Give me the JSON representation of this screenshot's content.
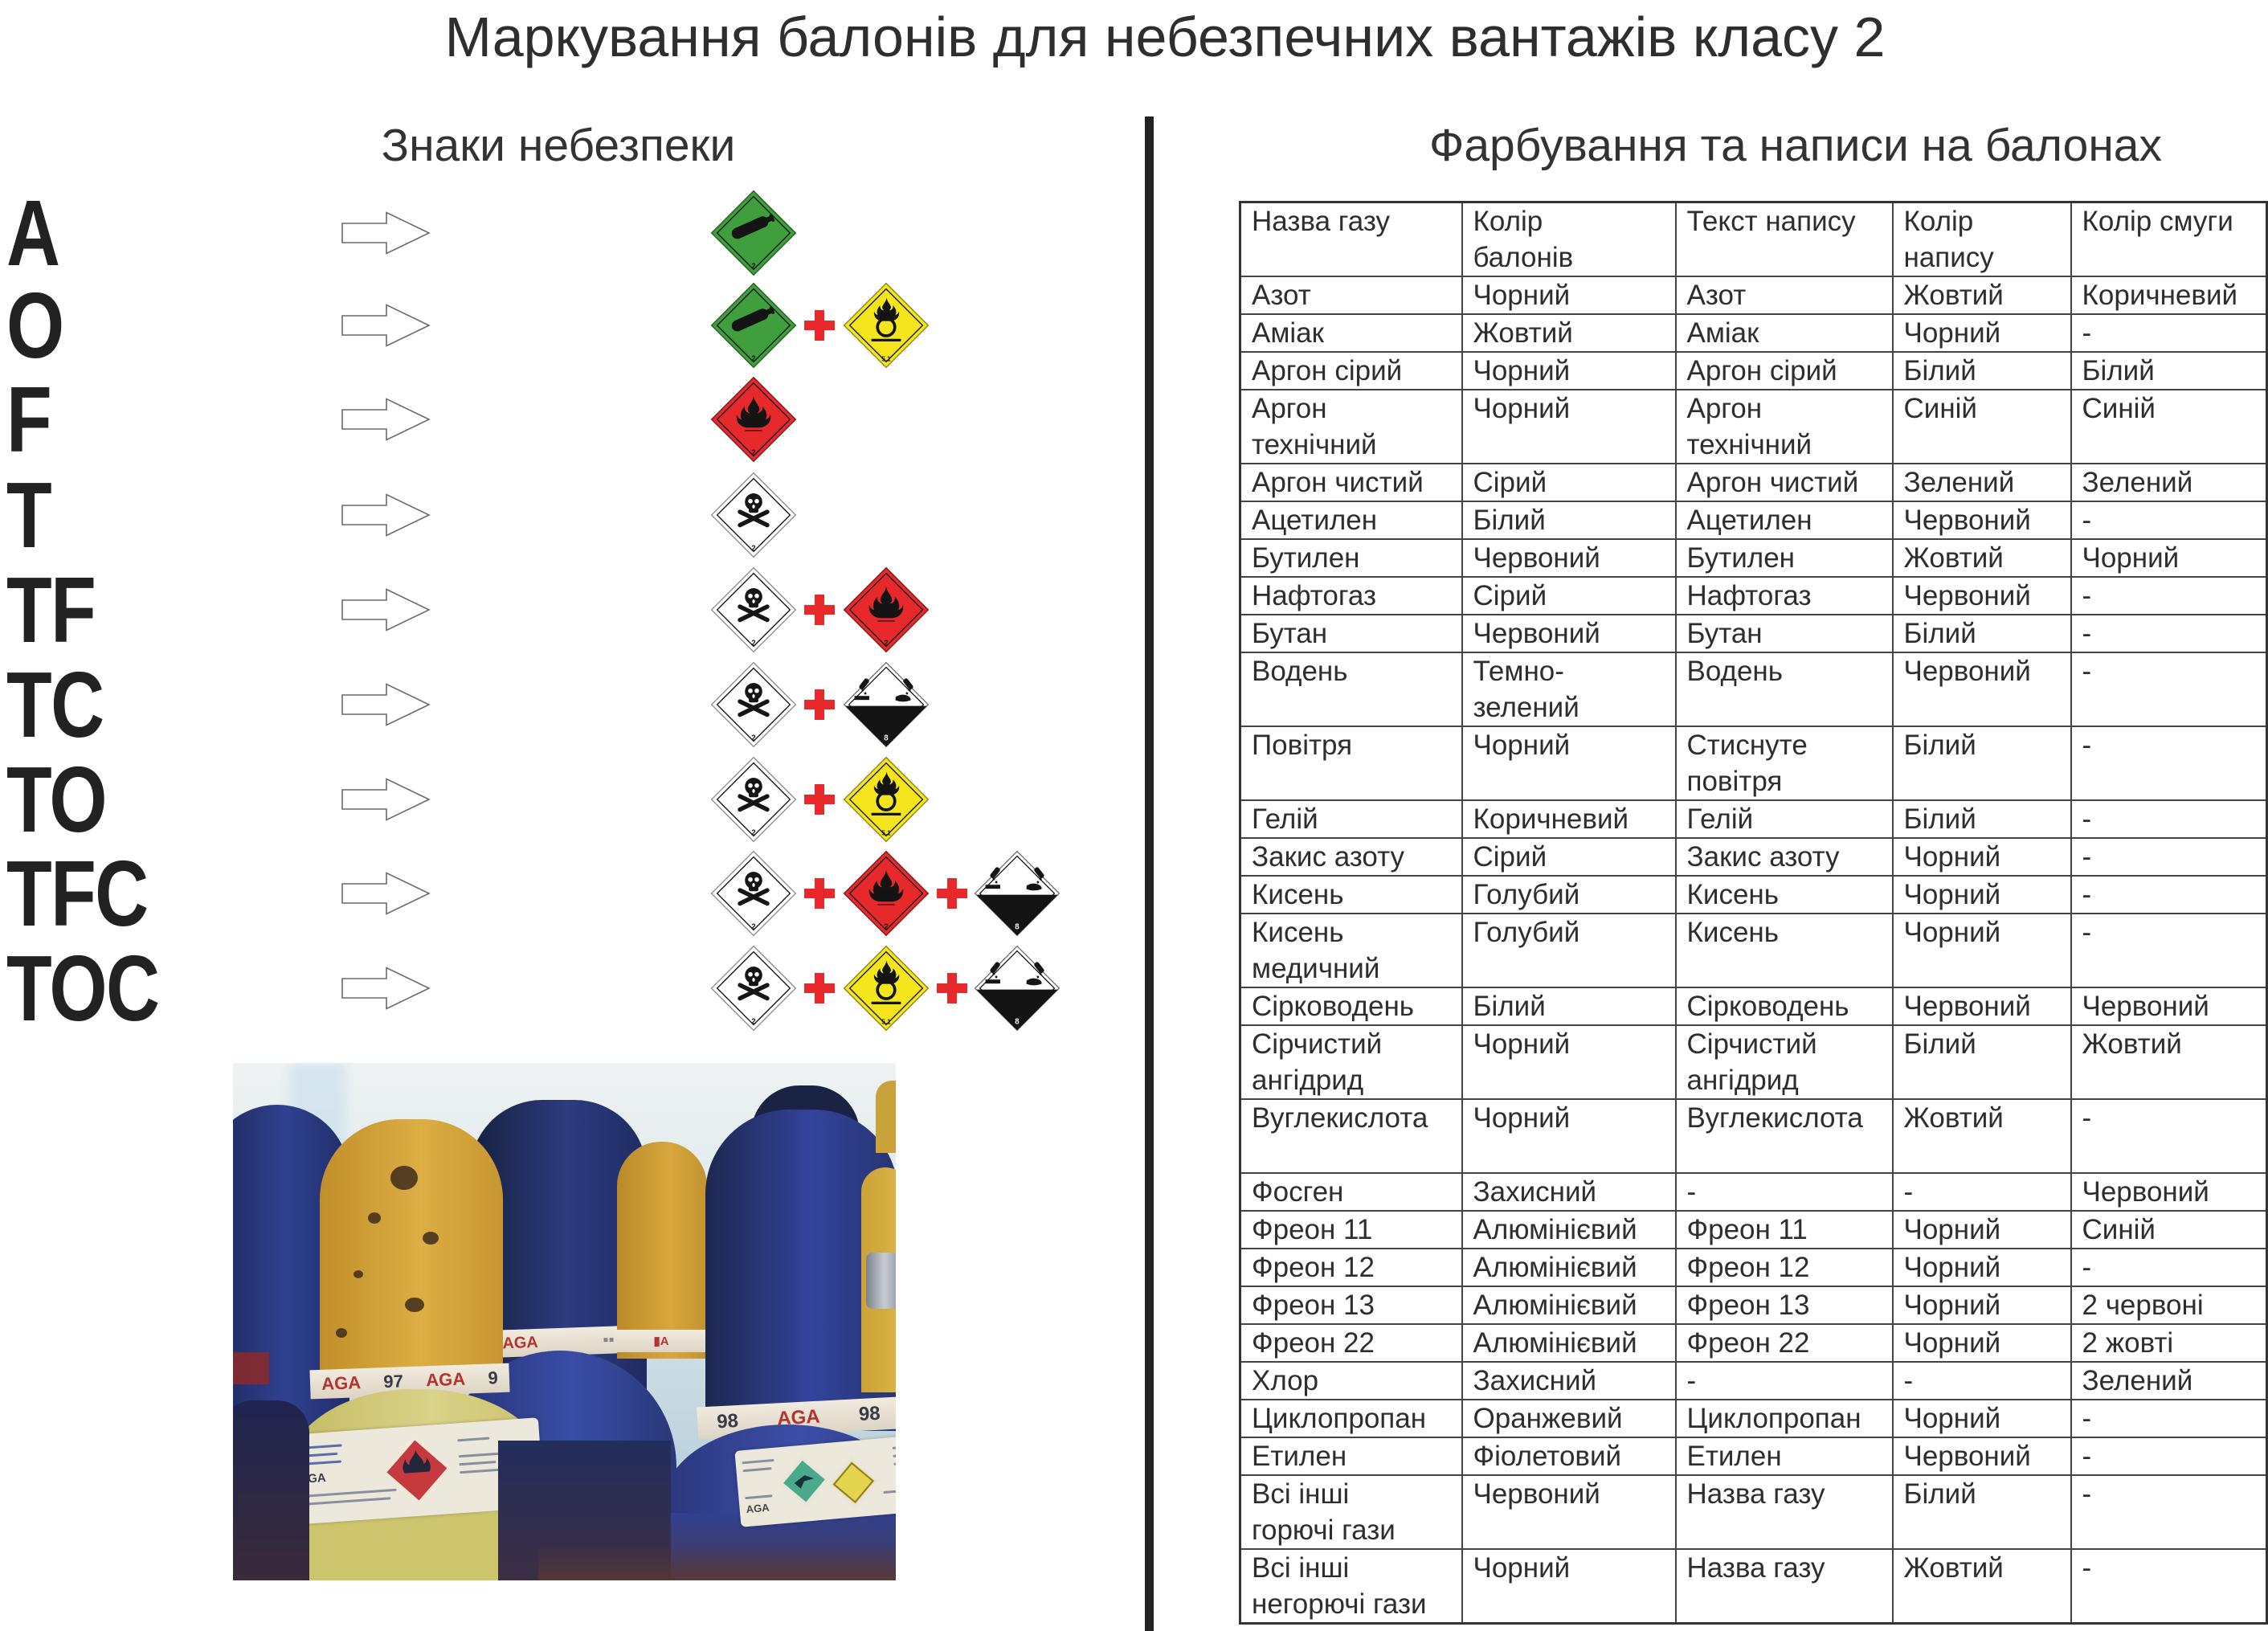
{
  "title": "Маркування балонів для небезпечних вантажів класу 2",
  "left_section": {
    "header": "Знаки небезпеки",
    "plus_symbol": "+",
    "rows": [
      {
        "code": "A",
        "placards": [
          "gas-green"
        ]
      },
      {
        "code": "O",
        "placards": [
          "gas-green",
          "oxidizer"
        ]
      },
      {
        "code": "F",
        "placards": [
          "flammable"
        ]
      },
      {
        "code": "T",
        "placards": [
          "toxic"
        ]
      },
      {
        "code": "TF",
        "placards": [
          "toxic",
          "flammable"
        ]
      },
      {
        "code": "TC",
        "placards": [
          "toxic",
          "corrosive"
        ]
      },
      {
        "code": "TO",
        "placards": [
          "toxic",
          "oxidizer"
        ]
      },
      {
        "code": "TFC",
        "placards": [
          "toxic",
          "flammable",
          "corrosive"
        ]
      },
      {
        "code": "TOC",
        "placards": [
          "toxic",
          "oxidizer",
          "corrosive"
        ]
      }
    ],
    "placard_labels": {
      "gas-green": "2",
      "oxidizer": "5.1",
      "flammable": "2",
      "toxic": "2",
      "corrosive": "8"
    }
  },
  "right_section": {
    "header": "Фарбування та написи на балонах",
    "table": {
      "columns": [
        "Назва газу",
        "Колір\nбалонів",
        "Текст напису",
        "Колір\nнапису",
        "Колір смуги"
      ],
      "rows": [
        [
          "Азот",
          "Чорний",
          "Азот",
          "Жовтий",
          "Коричневий"
        ],
        [
          "Аміак",
          "Жовтий",
          "Аміак",
          "Чорний",
          "-"
        ],
        [
          "Аргон сірий",
          "Чорний",
          "Аргон сірий",
          "Білий",
          "Білий"
        ],
        [
          "Аргон\nтехнічний",
          "Чорний",
          "Аргон\nтехнічний",
          "Синій",
          "Синій"
        ],
        [
          "Аргон чистий",
          "Сірий",
          "Аргон чистий",
          "Зелений",
          "Зелений"
        ],
        [
          "Ацетилен",
          "Білий",
          "Ацетилен",
          "Червоний",
          "-"
        ],
        [
          "Бутилен",
          "Червоний",
          "Бутилен",
          "Жовтий",
          "Чорний"
        ],
        [
          "Нафтогаз",
          "Сірий",
          "Нафтогаз",
          "Червоний",
          "-"
        ],
        [
          "Бутан",
          "Червоний",
          "Бутан",
          "Білий",
          "-"
        ],
        [
          "Водень",
          "Темно-\nзелений",
          "Водень",
          "Червоний",
          "-"
        ],
        [
          "Повітря",
          "Чорний",
          "Стиснуте\nповітря",
          "Білий",
          "-"
        ],
        [
          "Гелій",
          "Коричневий",
          "Гелій",
          "Білий",
          "-"
        ],
        [
          "Закис азоту",
          "Сірий",
          "Закис азоту",
          "Чорний",
          "-"
        ],
        [
          "Кисень",
          "Голубий",
          "Кисень",
          "Чорний",
          "-"
        ],
        [
          "Кисень\nмедичний",
          "Голубий",
          "Кисень",
          "Чорний",
          "-"
        ],
        [
          "Сірководень",
          "Білий",
          "Сірководень",
          "Червоний",
          "Червоний"
        ],
        [
          "Сірчистий\nангідрид",
          "Чорний",
          "Сірчистий\nангідрид",
          "Білий",
          "Жовтий"
        ],
        [
          "Вуглекислота",
          "Чорний",
          "Вуглекислота",
          "Жовтий",
          "-"
        ],
        [
          "Фосген",
          "Захисний",
          "-",
          "-",
          "Червоний"
        ],
        [
          "Фреон 11",
          "Алюмінієвий",
          "Фреон 11",
          "Чорний",
          "Синій"
        ],
        [
          "Фреон 12",
          "Алюмінієвий",
          "Фреон 12",
          "Чорний",
          "-"
        ],
        [
          "Фреон 13",
          "Алюмінієвий",
          "Фреон 13",
          "Чорний",
          "2 червоні"
        ],
        [
          "Фреон 22",
          "Алюмінієвий",
          "Фреон 22",
          "Чорний",
          "2 жовті"
        ],
        [
          "Хлор",
          "Захисний",
          "-",
          "-",
          "Зелений"
        ],
        [
          "Циклопропан",
          "Оранжевий",
          "Циклопропан",
          "Чорний",
          "-"
        ],
        [
          "Етилен",
          "Фіолетовий",
          "Етилен",
          "Червоний",
          "-"
        ],
        [
          "Всі інші\nгорючі гази",
          "Червоний",
          "Назва газу",
          "Білий",
          "-"
        ],
        [
          "Всі інші\nнегорючі гази",
          "Чорний",
          "Назва газу",
          "Жовтий",
          "-"
        ]
      ],
      "double_height_rows": [
        17
      ]
    }
  },
  "photo": {
    "collar_left_parts": [
      "AGA",
      "97",
      "AGA",
      "9"
    ],
    "collar_right_parts": [
      "98",
      "AGA",
      "98"
    ],
    "collar_center_brand": "AGA",
    "label_brand": "AGA"
  },
  "colors": {
    "placard_green": "#3f9f3c",
    "placard_yellow": "#f4e51c",
    "placard_red": "#e7292c",
    "placard_black": "#141414",
    "plus_red": "#e7292c",
    "divider_black": "#222222",
    "table_border": "#444444",
    "text": "#2b2b2b"
  }
}
